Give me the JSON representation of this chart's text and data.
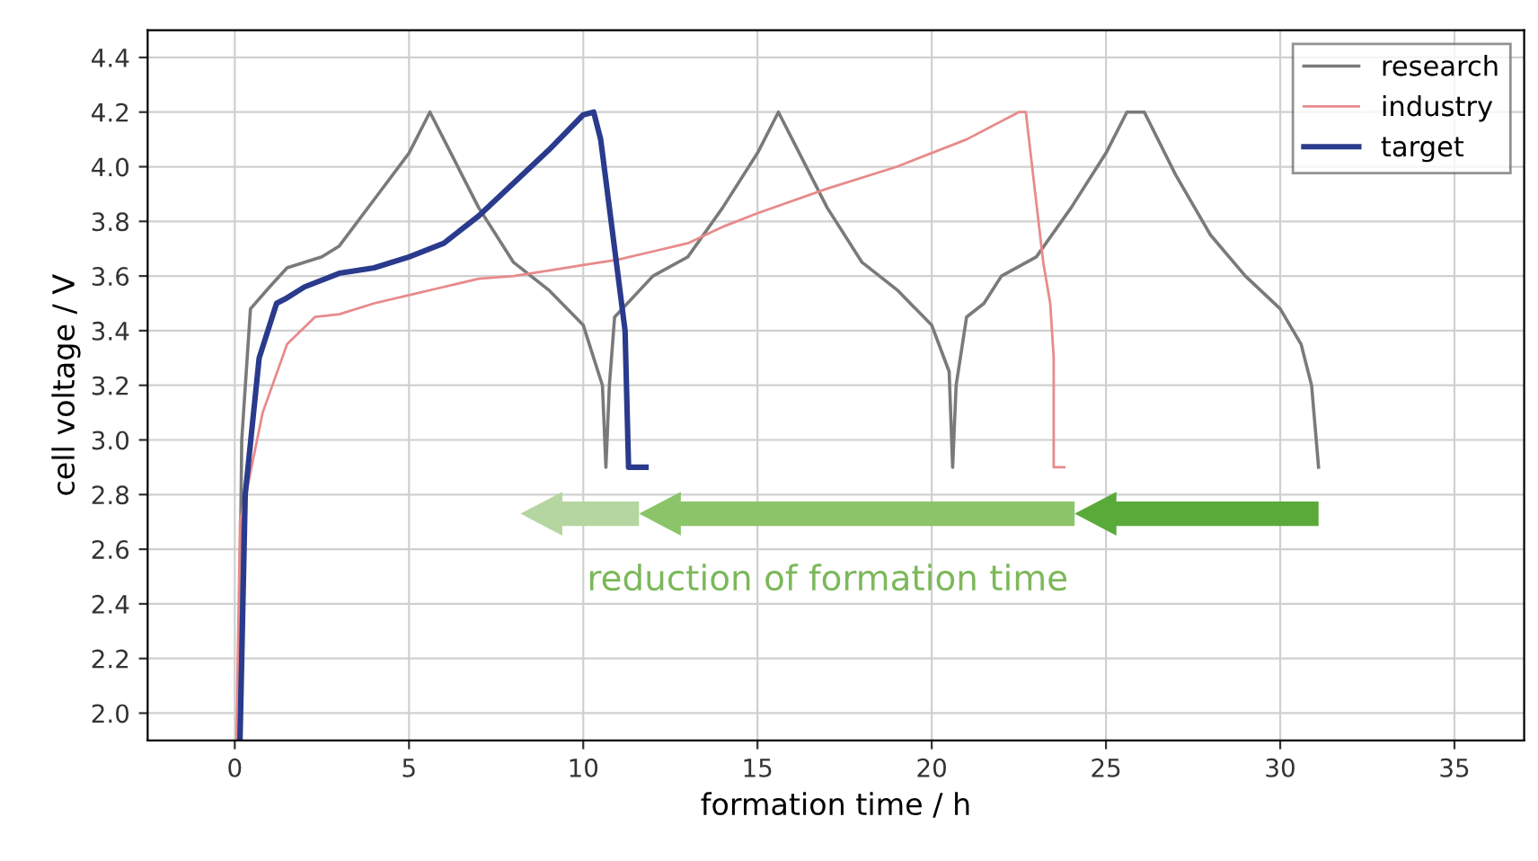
{
  "chart_data": {
    "type": "line",
    "xlabel": "formation time / h",
    "ylabel": "cell voltage / V",
    "xlim": [
      -2.5,
      37
    ],
    "xticks": [
      0,
      5,
      10,
      15,
      20,
      25,
      30,
      35
    ],
    "ylim": [
      1.9,
      4.5
    ],
    "yticks": [
      {
        "value": 2,
        "label": "2.0"
      },
      2.2,
      2.4,
      2.6,
      2.8,
      {
        "value": 3,
        "label": "3.0"
      },
      3.2,
      3.4,
      3.6,
      3.8,
      {
        "value": 4,
        "label": "4.0"
      },
      4.2,
      4.4
    ],
    "grid": true,
    "legend": "top right",
    "line_style": "solid",
    "marker": "none",
    "annotations": [
      "reduction of formation time"
    ],
    "series": [
      {
        "name": "research",
        "color": "#7a7a7a",
        "x": [
          0.1,
          0.2,
          0.45,
          1,
          1.5,
          2.5,
          3,
          4,
          5,
          5.6,
          6,
          7,
          8,
          9,
          10,
          10.55,
          10.65,
          10.75,
          10.9,
          12,
          13,
          14,
          15,
          15.6,
          16,
          17,
          18,
          19,
          20,
          20.5,
          20.6,
          20.7,
          21,
          21.5,
          22,
          23,
          24,
          25,
          25.6,
          26.1,
          27,
          28,
          29,
          30,
          30.6,
          30.9,
          31.1
        ],
        "values": [
          1.9,
          3.0,
          3.48,
          3.56,
          3.63,
          3.67,
          3.71,
          3.88,
          4.05,
          4.2,
          4.1,
          3.85,
          3.65,
          3.55,
          3.42,
          3.2,
          2.9,
          3.2,
          3.45,
          3.6,
          3.67,
          3.85,
          4.05,
          4.2,
          4.1,
          3.85,
          3.65,
          3.55,
          3.42,
          3.25,
          2.9,
          3.2,
          3.45,
          3.5,
          3.6,
          3.67,
          3.85,
          4.05,
          4.2,
          4.2,
          3.97,
          3.75,
          3.6,
          3.48,
          3.35,
          3.2,
          2.9
        ]
      },
      {
        "name": "industry",
        "color": "#e88a8a",
        "x": [
          0.05,
          0.15,
          0.4,
          0.8,
          1.5,
          2.3,
          3,
          4,
          5,
          6,
          7,
          8,
          9,
          10,
          11,
          12,
          13,
          14,
          15,
          17,
          19,
          21,
          22.5,
          22.7,
          23.2,
          23.4,
          23.5,
          23.5,
          23.8
        ],
        "values": [
          1.9,
          2.7,
          2.85,
          3.1,
          3.35,
          3.45,
          3.46,
          3.5,
          3.53,
          3.56,
          3.59,
          3.6,
          3.62,
          3.64,
          3.66,
          3.69,
          3.72,
          3.78,
          3.83,
          3.92,
          4.0,
          4.1,
          4.2,
          4.2,
          3.65,
          3.5,
          3.3,
          2.9,
          2.9
        ]
      },
      {
        "name": "target",
        "color": "#2a3a8c",
        "x": [
          0.15,
          0.3,
          0.7,
          1.2,
          1.5,
          2,
          3,
          4,
          5,
          6,
          7,
          8,
          9,
          10,
          10.3,
          10.5,
          11,
          11.2,
          11.3,
          11.8
        ],
        "values": [
          1.9,
          2.8,
          3.3,
          3.5,
          3.52,
          3.56,
          3.61,
          3.63,
          3.67,
          3.72,
          3.82,
          3.94,
          4.06,
          4.19,
          4.2,
          4.1,
          3.6,
          3.4,
          2.9,
          2.9
        ]
      }
    ]
  }
}
